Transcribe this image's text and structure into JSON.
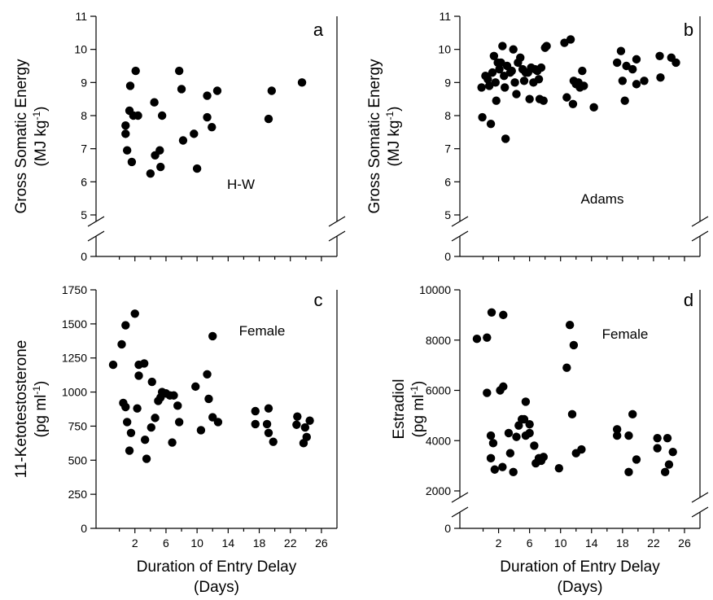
{
  "chart_data": [
    {
      "type": "scatter",
      "panel_letter": "a",
      "annotation": "H-W",
      "ylabel_line1": "Gross Somatic Energy",
      "ylabel_unit": "(MJ kg",
      "ylabel_exp": "-1",
      "ylabel_close": ")",
      "xlabel": "",
      "xlim": [
        -3,
        28
      ],
      "ylim": [
        5,
        11
      ],
      "y_break": true,
      "xticks": [
        2,
        6,
        10,
        14,
        18,
        22,
        26
      ],
      "xticklabels": [
        "",
        "",
        "",
        "",
        "",
        "",
        ""
      ],
      "yticks": [
        5,
        6,
        7,
        8,
        9,
        10,
        11
      ],
      "yticklabels": [
        "5",
        "6",
        "7",
        "8",
        "9",
        "10",
        "11"
      ],
      "y_zero_label": "0",
      "points": [
        [
          0.8,
          7.7
        ],
        [
          0.8,
          7.45
        ],
        [
          1.0,
          6.95
        ],
        [
          1.3,
          8.15
        ],
        [
          1.4,
          8.9
        ],
        [
          1.6,
          6.6
        ],
        [
          1.8,
          8.0
        ],
        [
          2.1,
          9.35
        ],
        [
          2.4,
          8.0
        ],
        [
          4.0,
          6.25
        ],
        [
          4.5,
          8.4
        ],
        [
          4.6,
          6.8
        ],
        [
          5.2,
          6.95
        ],
        [
          5.3,
          6.45
        ],
        [
          5.5,
          8.0
        ],
        [
          7.7,
          9.35
        ],
        [
          8.0,
          8.8
        ],
        [
          8.2,
          7.25
        ],
        [
          9.6,
          7.45
        ],
        [
          10.0,
          6.4
        ],
        [
          11.3,
          8.6
        ],
        [
          11.3,
          7.95
        ],
        [
          11.9,
          7.65
        ],
        [
          12.6,
          8.75
        ],
        [
          19.2,
          7.9
        ],
        [
          19.6,
          8.75
        ],
        [
          23.5,
          9.0
        ]
      ]
    },
    {
      "type": "scatter",
      "panel_letter": "b",
      "annotation": "Adams",
      "ylabel_line1": "Gross Somatic Energy",
      "ylabel_unit": "(MJ kg",
      "ylabel_exp": "-1",
      "ylabel_close": ")",
      "xlabel": "",
      "xlim": [
        -3,
        28
      ],
      "ylim": [
        5,
        11
      ],
      "y_break": true,
      "xticks": [
        2,
        6,
        10,
        14,
        18,
        22,
        26
      ],
      "xticklabels": [
        "",
        "",
        "",
        "",
        "",
        "",
        ""
      ],
      "yticks": [
        5,
        6,
        7,
        8,
        9,
        10,
        11
      ],
      "yticklabels": [
        "5",
        "6",
        "7",
        "8",
        "9",
        "10",
        "11"
      ],
      "y_zero_label": "0",
      "points": [
        [
          -0.2,
          8.85
        ],
        [
          -0.1,
          7.95
        ],
        [
          0.3,
          9.2
        ],
        [
          0.6,
          9.1
        ],
        [
          0.8,
          8.9
        ],
        [
          1.0,
          7.75
        ],
        [
          1.2,
          9.3
        ],
        [
          1.4,
          9.8
        ],
        [
          1.6,
          9.0
        ],
        [
          1.7,
          8.45
        ],
        [
          1.9,
          9.6
        ],
        [
          2.1,
          9.4
        ],
        [
          2.3,
          9.6
        ],
        [
          2.5,
          10.1
        ],
        [
          2.7,
          9.2
        ],
        [
          2.8,
          8.85
        ],
        [
          2.9,
          7.3
        ],
        [
          3.1,
          9.5
        ],
        [
          3.5,
          9.3
        ],
        [
          3.7,
          9.35
        ],
        [
          3.9,
          10.0
        ],
        [
          4.1,
          9.0
        ],
        [
          4.3,
          8.65
        ],
        [
          4.5,
          9.6
        ],
        [
          4.8,
          9.75
        ],
        [
          5.1,
          9.4
        ],
        [
          5.3,
          9.05
        ],
        [
          5.5,
          9.3
        ],
        [
          5.8,
          9.3
        ],
        [
          6.0,
          8.5
        ],
        [
          6.2,
          9.45
        ],
        [
          6.5,
          9.0
        ],
        [
          6.7,
          9.4
        ],
        [
          7.0,
          9.35
        ],
        [
          7.2,
          9.1
        ],
        [
          7.3,
          8.5
        ],
        [
          7.5,
          9.45
        ],
        [
          7.8,
          8.45
        ],
        [
          8.0,
          10.05
        ],
        [
          8.2,
          10.1
        ],
        [
          10.5,
          10.2
        ],
        [
          10.8,
          8.55
        ],
        [
          11.3,
          10.3
        ],
        [
          11.6,
          8.35
        ],
        [
          11.7,
          9.05
        ],
        [
          12.0,
          8.95
        ],
        [
          12.3,
          9.0
        ],
        [
          12.5,
          8.85
        ],
        [
          12.8,
          9.35
        ],
        [
          13.0,
          8.9
        ],
        [
          14.3,
          8.25
        ],
        [
          17.3,
          9.6
        ],
        [
          17.8,
          9.95
        ],
        [
          18.0,
          9.05
        ],
        [
          18.3,
          8.45
        ],
        [
          18.5,
          9.5
        ],
        [
          19.3,
          9.4
        ],
        [
          19.8,
          9.7
        ],
        [
          19.8,
          8.95
        ],
        [
          20.8,
          9.05
        ],
        [
          22.8,
          9.8
        ],
        [
          22.9,
          9.15
        ],
        [
          24.3,
          9.75
        ],
        [
          24.9,
          9.6
        ]
      ]
    },
    {
      "type": "scatter",
      "panel_letter": "c",
      "annotation": "Female",
      "ylabel_line1": "11-Ketotestosterone",
      "ylabel_unit": "(pg ml",
      "ylabel_exp": "-1",
      "ylabel_close": ")",
      "xlabel": "Duration of Entry Delay",
      "xlabel2": "(Days)",
      "xlim": [
        -3,
        28
      ],
      "ylim": [
        0,
        1750
      ],
      "y_break": false,
      "xticks": [
        2,
        6,
        10,
        14,
        18,
        22,
        26
      ],
      "xticklabels": [
        "2",
        "6",
        "10",
        "14",
        "18",
        "22",
        "26"
      ],
      "yticks": [
        0,
        250,
        500,
        750,
        1000,
        1250,
        1500,
        1750
      ],
      "yticklabels": [
        "0",
        "250",
        "500",
        "750",
        "1000",
        "1250",
        "1500",
        "1750"
      ],
      "points": [
        [
          -0.8,
          1200
        ],
        [
          0.3,
          1350
        ],
        [
          0.5,
          920
        ],
        [
          0.8,
          1490
        ],
        [
          0.8,
          890
        ],
        [
          1.0,
          780
        ],
        [
          1.3,
          570
        ],
        [
          1.5,
          700
        ],
        [
          2.0,
          1575
        ],
        [
          2.3,
          880
        ],
        [
          2.5,
          1200
        ],
        [
          2.5,
          1120
        ],
        [
          3.2,
          1210
        ],
        [
          3.3,
          650
        ],
        [
          3.5,
          510
        ],
        [
          4.1,
          740
        ],
        [
          4.2,
          1075
        ],
        [
          4.6,
          810
        ],
        [
          5.0,
          935
        ],
        [
          5.3,
          960
        ],
        [
          5.5,
          1000
        ],
        [
          6.0,
          990
        ],
        [
          6.5,
          975
        ],
        [
          6.8,
          630
        ],
        [
          7.0,
          975
        ],
        [
          7.5,
          900
        ],
        [
          7.7,
          780
        ],
        [
          9.8,
          1040
        ],
        [
          10.5,
          720
        ],
        [
          11.3,
          1130
        ],
        [
          11.5,
          950
        ],
        [
          12.0,
          1410
        ],
        [
          12.0,
          815
        ],
        [
          12.7,
          780
        ],
        [
          17.5,
          860
        ],
        [
          17.5,
          765
        ],
        [
          19.0,
          765
        ],
        [
          19.2,
          880
        ],
        [
          19.2,
          700
        ],
        [
          19.8,
          635
        ],
        [
          22.8,
          760
        ],
        [
          22.9,
          820
        ],
        [
          23.7,
          625
        ],
        [
          23.9,
          740
        ],
        [
          24.1,
          670
        ],
        [
          24.5,
          790
        ]
      ]
    },
    {
      "type": "scatter",
      "panel_letter": "d",
      "annotation": "Female",
      "ylabel_line1": "Estradiol",
      "ylabel_unit": "(pg ml",
      "ylabel_exp": "-1",
      "ylabel_close": ")",
      "xlabel": "Duration of Entry Delay",
      "xlabel2": "(Days)",
      "xlim": [
        -3,
        28
      ],
      "ylim": [
        2000,
        10000
      ],
      "y_break": true,
      "xticks": [
        2,
        6,
        10,
        14,
        18,
        22,
        26
      ],
      "xticklabels": [
        "2",
        "6",
        "10",
        "14",
        "18",
        "22",
        "26"
      ],
      "yticks": [
        2000,
        4000,
        6000,
        8000,
        10000
      ],
      "yticklabels": [
        "2000",
        "4000",
        "6000",
        "8000",
        "10000"
      ],
      "y_zero_label": "0",
      "points": [
        [
          -0.8,
          8050
        ],
        [
          0.5,
          8100
        ],
        [
          0.5,
          5900
        ],
        [
          1.1,
          9100
        ],
        [
          1.0,
          4200
        ],
        [
          1.0,
          3300
        ],
        [
          1.3,
          3900
        ],
        [
          1.5,
          2850
        ],
        [
          2.2,
          6000
        ],
        [
          2.6,
          6150
        ],
        [
          2.6,
          9000
        ],
        [
          2.5,
          2950
        ],
        [
          3.3,
          4300
        ],
        [
          3.5,
          3500
        ],
        [
          3.9,
          2750
        ],
        [
          4.3,
          4150
        ],
        [
          4.6,
          4600
        ],
        [
          5.0,
          4850
        ],
        [
          5.3,
          4850
        ],
        [
          5.5,
          5550
        ],
        [
          5.5,
          4200
        ],
        [
          6.0,
          4650
        ],
        [
          6.0,
          4300
        ],
        [
          6.6,
          3800
        ],
        [
          6.8,
          3100
        ],
        [
          7.2,
          3300
        ],
        [
          7.5,
          3200
        ],
        [
          7.8,
          3350
        ],
        [
          9.8,
          2900
        ],
        [
          10.8,
          6900
        ],
        [
          11.2,
          8600
        ],
        [
          11.5,
          5050
        ],
        [
          11.7,
          7800
        ],
        [
          12.0,
          3500
        ],
        [
          12.7,
          3650
        ],
        [
          17.3,
          4200
        ],
        [
          17.3,
          4450
        ],
        [
          18.8,
          4200
        ],
        [
          18.8,
          2750
        ],
        [
          19.3,
          5050
        ],
        [
          19.8,
          3250
        ],
        [
          22.5,
          4100
        ],
        [
          22.5,
          3700
        ],
        [
          23.5,
          2750
        ],
        [
          23.8,
          4100
        ],
        [
          24.0,
          3050
        ],
        [
          24.5,
          3550
        ]
      ]
    }
  ]
}
